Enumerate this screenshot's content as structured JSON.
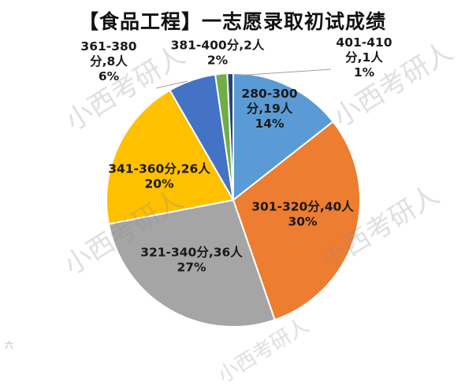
{
  "title": "【食品工程】一志愿录取初试成绩",
  "watermark": "小西考研人",
  "corner_logo": "六",
  "chart_data": {
    "type": "pie",
    "title": "【食品工程】一志愿录取初试成绩",
    "slices": [
      {
        "name": "280-300",
        "value": 19,
        "percent": "14%",
        "color": "#5B9BD5",
        "label_lines": [
          "280-300",
          "分,19人",
          "14%"
        ]
      },
      {
        "name": "301-320",
        "value": 40,
        "percent": "30%",
        "color": "#ED7D31",
        "label_lines": [
          "301-320分,40人",
          "30%"
        ]
      },
      {
        "name": "321-340",
        "value": 36,
        "percent": "27%",
        "color": "#A5A5A5",
        "label_lines": [
          "321-340分,36人",
          "27%"
        ]
      },
      {
        "name": "341-360",
        "value": 26,
        "percent": "20%",
        "color": "#FFC000",
        "label_lines": [
          "341-360分,26人",
          "20%"
        ]
      },
      {
        "name": "361-380",
        "value": 8,
        "percent": "6%",
        "color": "#4472C4",
        "label_lines": [
          "361-380",
          "分,8人",
          "6%"
        ]
      },
      {
        "name": "381-400",
        "value": 2,
        "percent": "2%",
        "color": "#70AD47",
        "label_lines": [
          "381-400分,2人",
          "2%"
        ]
      },
      {
        "name": "401-410",
        "value": 1,
        "percent": "1%",
        "color": "#264478",
        "label_lines": [
          "401-410",
          "分,1人",
          "1%"
        ]
      }
    ]
  }
}
